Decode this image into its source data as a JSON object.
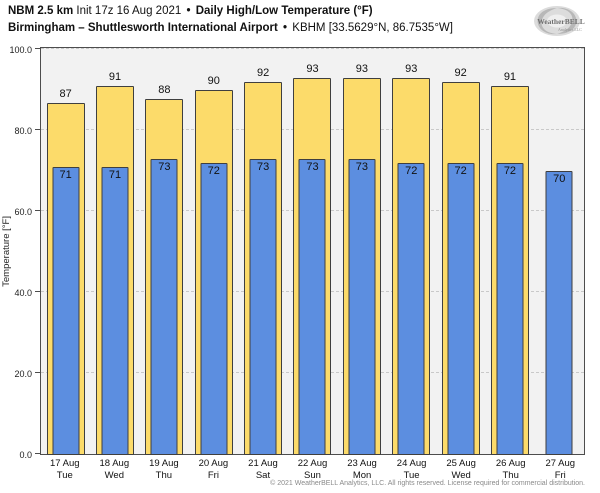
{
  "header": {
    "model": "NBM 2.5 km",
    "init": "Init 17z 16 Aug 2021",
    "separator": "•",
    "product": "Daily High/Low Temperature (°F)",
    "location": "Birmingham – Shuttlesworth International Airport",
    "station": "KBHM [33.5629°N, 86.7535°W]"
  },
  "logo": {
    "name": "WeatherBELL",
    "subtext": "Analytics LLC"
  },
  "chart_data": {
    "type": "bar",
    "title": "NBM 2.5 km Daily High/Low Temperature (°F) — Birmingham – Shuttlesworth International Airport (KBHM)",
    "categories": [
      {
        "date": "17 Aug",
        "day": "Tue"
      },
      {
        "date": "18 Aug",
        "day": "Wed"
      },
      {
        "date": "19 Aug",
        "day": "Thu"
      },
      {
        "date": "20 Aug",
        "day": "Fri"
      },
      {
        "date": "21 Aug",
        "day": "Sat"
      },
      {
        "date": "22 Aug",
        "day": "Sun"
      },
      {
        "date": "23 Aug",
        "day": "Mon"
      },
      {
        "date": "24 Aug",
        "day": "Tue"
      },
      {
        "date": "25 Aug",
        "day": "Wed"
      },
      {
        "date": "26 Aug",
        "day": "Thu"
      },
      {
        "date": "27 Aug",
        "day": "Fri"
      }
    ],
    "series": [
      {
        "name": "High",
        "color": "#fcdb6a",
        "values": [
          87,
          91,
          88,
          90,
          92,
          93,
          93,
          93,
          92,
          91,
          null
        ]
      },
      {
        "name": "Low",
        "color": "#5c8ee0",
        "values": [
          71,
          71,
          73,
          72,
          73,
          73,
          73,
          72,
          72,
          72,
          70
        ]
      }
    ],
    "bar_labels_shown": true,
    "ylabel": "Temperature [°F]",
    "xlabel": "",
    "ytick_values": [
      0,
      20,
      40,
      60,
      80,
      100
    ],
    "ytick_format_decimals": 1,
    "ylim": [
      0,
      100.7
    ],
    "grid": "horizontal-dashed",
    "legend": "none",
    "plot_bg": "#f2f2f2",
    "bar_border": "#3f3f3f",
    "grid_color": "#c9c9c9"
  },
  "footer": {
    "copyright": "© 2021 WeatherBELL Analytics, LLC. All rights reserved. License required for commercial distribution."
  }
}
